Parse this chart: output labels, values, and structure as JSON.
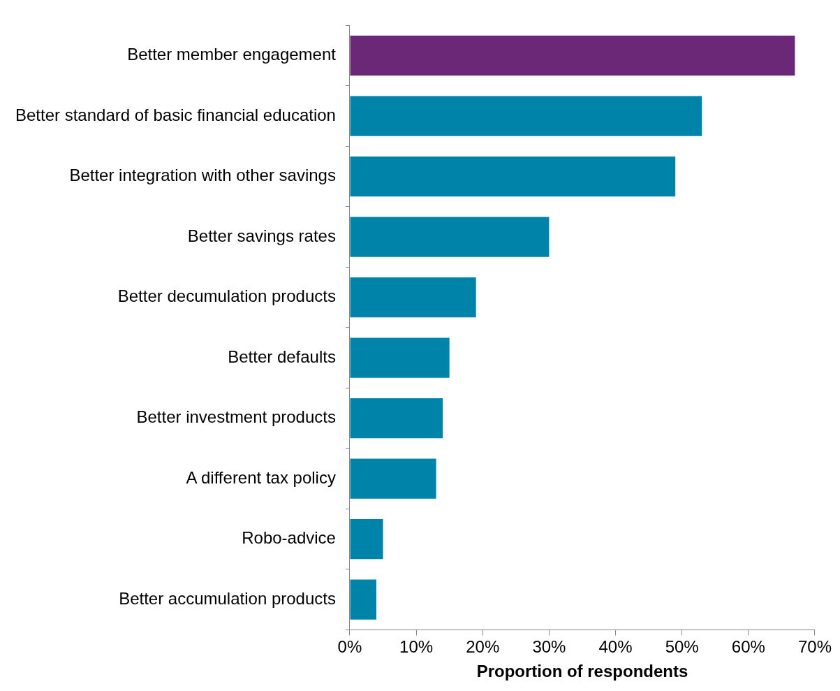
{
  "chart_data": {
    "type": "bar",
    "orientation": "horizontal",
    "xlabel": "Proportion of respondents",
    "categories": [
      "Better member engagement",
      "Better standard of basic financial education",
      "Better integration with other savings",
      "Better savings rates",
      "Better decumulation products",
      "Better defaults",
      "Better investment products",
      "A different tax policy",
      "Robo-advice",
      "Better accumulation products"
    ],
    "values": [
      67,
      53,
      49,
      30,
      19,
      15,
      14,
      13,
      5,
      4
    ],
    "colors": [
      "#6b2877",
      "#0083a9",
      "#0083a9",
      "#0083a9",
      "#0083a9",
      "#0083a9",
      "#0083a9",
      "#0083a9",
      "#0083a9",
      "#0083a9"
    ],
    "xlim": [
      0,
      70
    ],
    "xticks": [
      {
        "value": 0,
        "label": "0%"
      },
      {
        "value": 10,
        "label": "10%"
      },
      {
        "value": 20,
        "label": "20%"
      },
      {
        "value": 30,
        "label": "30%"
      },
      {
        "value": 40,
        "label": "40%"
      },
      {
        "value": 50,
        "label": "50%"
      },
      {
        "value": 60,
        "label": "60%"
      },
      {
        "value": 70,
        "label": "70%"
      }
    ],
    "grid": false,
    "legend": false
  }
}
